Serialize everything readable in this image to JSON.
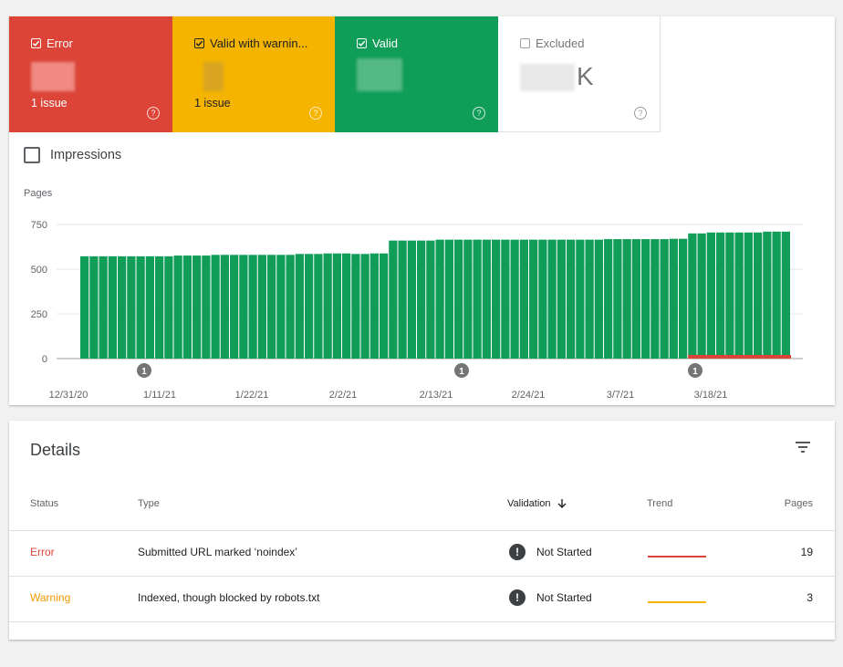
{
  "tiles": [
    {
      "label": "Error",
      "sub": "1 issue",
      "color": "#db4437",
      "checked": true
    },
    {
      "label": "Valid with warnin...",
      "sub": "1 issue",
      "color": "#f4b400",
      "checked": true
    },
    {
      "label": "Valid",
      "sub": "",
      "color": "#0f9d58",
      "checked": true
    },
    {
      "label": "Excluded",
      "value_suffix": "K",
      "checked": false
    }
  ],
  "impressions_label": "Impressions",
  "chart_data": {
    "type": "bar",
    "ylabel": "Pages",
    "yticks": [
      "750",
      "500",
      "250",
      "0"
    ],
    "ylim": [
      0,
      750
    ],
    "xticks": [
      "12/31/20",
      "1/11/21",
      "1/22/21",
      "2/2/21",
      "2/13/21",
      "2/24/21",
      "3/7/21",
      "3/18/21"
    ],
    "annotations": [
      "1",
      "1",
      "1"
    ],
    "series": [
      {
        "color": "#0f9d58",
        "values": [
          572,
          572,
          572,
          572,
          572,
          572,
          572,
          572,
          572,
          572,
          576,
          576,
          576,
          576,
          580,
          580,
          580,
          580,
          580,
          580,
          580,
          580,
          580,
          585,
          585,
          585,
          588,
          588,
          588,
          585,
          585,
          588,
          588,
          660,
          660,
          660,
          660,
          660,
          665,
          665,
          665,
          665,
          665,
          665,
          665,
          665,
          665,
          665,
          665,
          665,
          665,
          665,
          665,
          665,
          665,
          665,
          668,
          668,
          668,
          668,
          668,
          668,
          668,
          670,
          670,
          700,
          700,
          705,
          705,
          705,
          705,
          705,
          705,
          710,
          710,
          710
        ]
      },
      {
        "color": "#db4437",
        "values": [
          0,
          0,
          0,
          0,
          0,
          0,
          0,
          0,
          0,
          0,
          0,
          0,
          0,
          0,
          0,
          0,
          0,
          0,
          0,
          0,
          0,
          0,
          0,
          0,
          0,
          0,
          0,
          0,
          0,
          0,
          0,
          0,
          0,
          0,
          0,
          0,
          0,
          0,
          0,
          0,
          0,
          0,
          0,
          0,
          0,
          0,
          0,
          0,
          0,
          0,
          0,
          0,
          0,
          0,
          0,
          0,
          0,
          0,
          0,
          0,
          0,
          0,
          0,
          0,
          0,
          19,
          19,
          19,
          19,
          19,
          19,
          19,
          19,
          19,
          19,
          19
        ]
      }
    ]
  },
  "details": {
    "title": "Details",
    "headers": {
      "status": "Status",
      "type": "Type",
      "validation": "Validation",
      "trend": "Trend",
      "pages": "Pages"
    },
    "rows": [
      {
        "status": "Error",
        "status_color": "#db4437",
        "type": "Submitted URL marked ‘noindex’",
        "validation": "Not Started",
        "pages": "19",
        "trend_color": "#db4437"
      },
      {
        "status": "Warning",
        "status_color": "#f29900",
        "type": "Indexed, though blocked by robots.txt",
        "validation": "Not Started",
        "pages": "3",
        "trend_color": "#f4b400"
      }
    ]
  }
}
